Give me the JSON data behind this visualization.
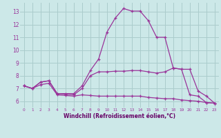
{
  "background_color": "#cce8e8",
  "grid_color": "#aacccc",
  "line_color": "#993399",
  "xlabel": "Windchill (Refroidissement éolien,°C)",
  "xlabel_color": "#660066",
  "xlim": [
    -0.5,
    23.5
  ],
  "ylim": [
    5.5,
    13.7
  ],
  "yticks": [
    6,
    7,
    8,
    9,
    10,
    11,
    12,
    13
  ],
  "xticks": [
    0,
    1,
    2,
    3,
    4,
    5,
    6,
    7,
    8,
    9,
    10,
    11,
    12,
    13,
    14,
    15,
    16,
    17,
    18,
    19,
    20,
    21,
    22,
    23
  ],
  "line1_x": [
    0,
    1,
    2,
    3,
    4,
    5,
    6,
    7,
    8,
    9,
    10,
    11,
    12,
    13,
    14,
    15,
    16,
    17,
    18,
    19,
    20,
    21,
    22,
    23
  ],
  "line1_y": [
    7.2,
    7.0,
    7.5,
    7.6,
    6.6,
    6.6,
    6.6,
    7.2,
    8.4,
    9.3,
    11.4,
    12.5,
    13.25,
    13.05,
    13.05,
    12.3,
    11.0,
    11.0,
    8.6,
    8.5,
    6.5,
    6.4,
    5.9,
    5.85
  ],
  "line2_x": [
    0,
    1,
    2,
    3,
    4,
    5,
    6,
    7,
    8,
    9,
    10,
    11,
    12,
    13,
    14,
    15,
    16,
    17,
    18,
    19,
    20,
    21,
    22,
    23
  ],
  "line2_y": [
    7.2,
    7.0,
    7.5,
    7.6,
    6.6,
    6.55,
    6.5,
    7.0,
    8.0,
    8.3,
    8.3,
    8.35,
    8.35,
    8.4,
    8.4,
    8.3,
    8.2,
    8.3,
    8.6,
    8.5,
    8.5,
    6.8,
    6.4,
    5.85
  ],
  "line3_x": [
    0,
    1,
    2,
    3,
    4,
    5,
    6,
    7,
    8,
    9,
    10,
    11,
    12,
    13,
    14,
    15,
    16,
    17,
    18,
    19,
    20,
    21,
    22,
    23
  ],
  "line3_y": [
    7.2,
    7.0,
    7.3,
    7.4,
    6.5,
    6.45,
    6.4,
    6.5,
    6.45,
    6.4,
    6.4,
    6.4,
    6.4,
    6.4,
    6.4,
    6.3,
    6.25,
    6.2,
    6.2,
    6.1,
    6.05,
    6.0,
    5.9,
    5.85
  ],
  "marker": "+",
  "markersize": 3,
  "linewidth": 0.9
}
